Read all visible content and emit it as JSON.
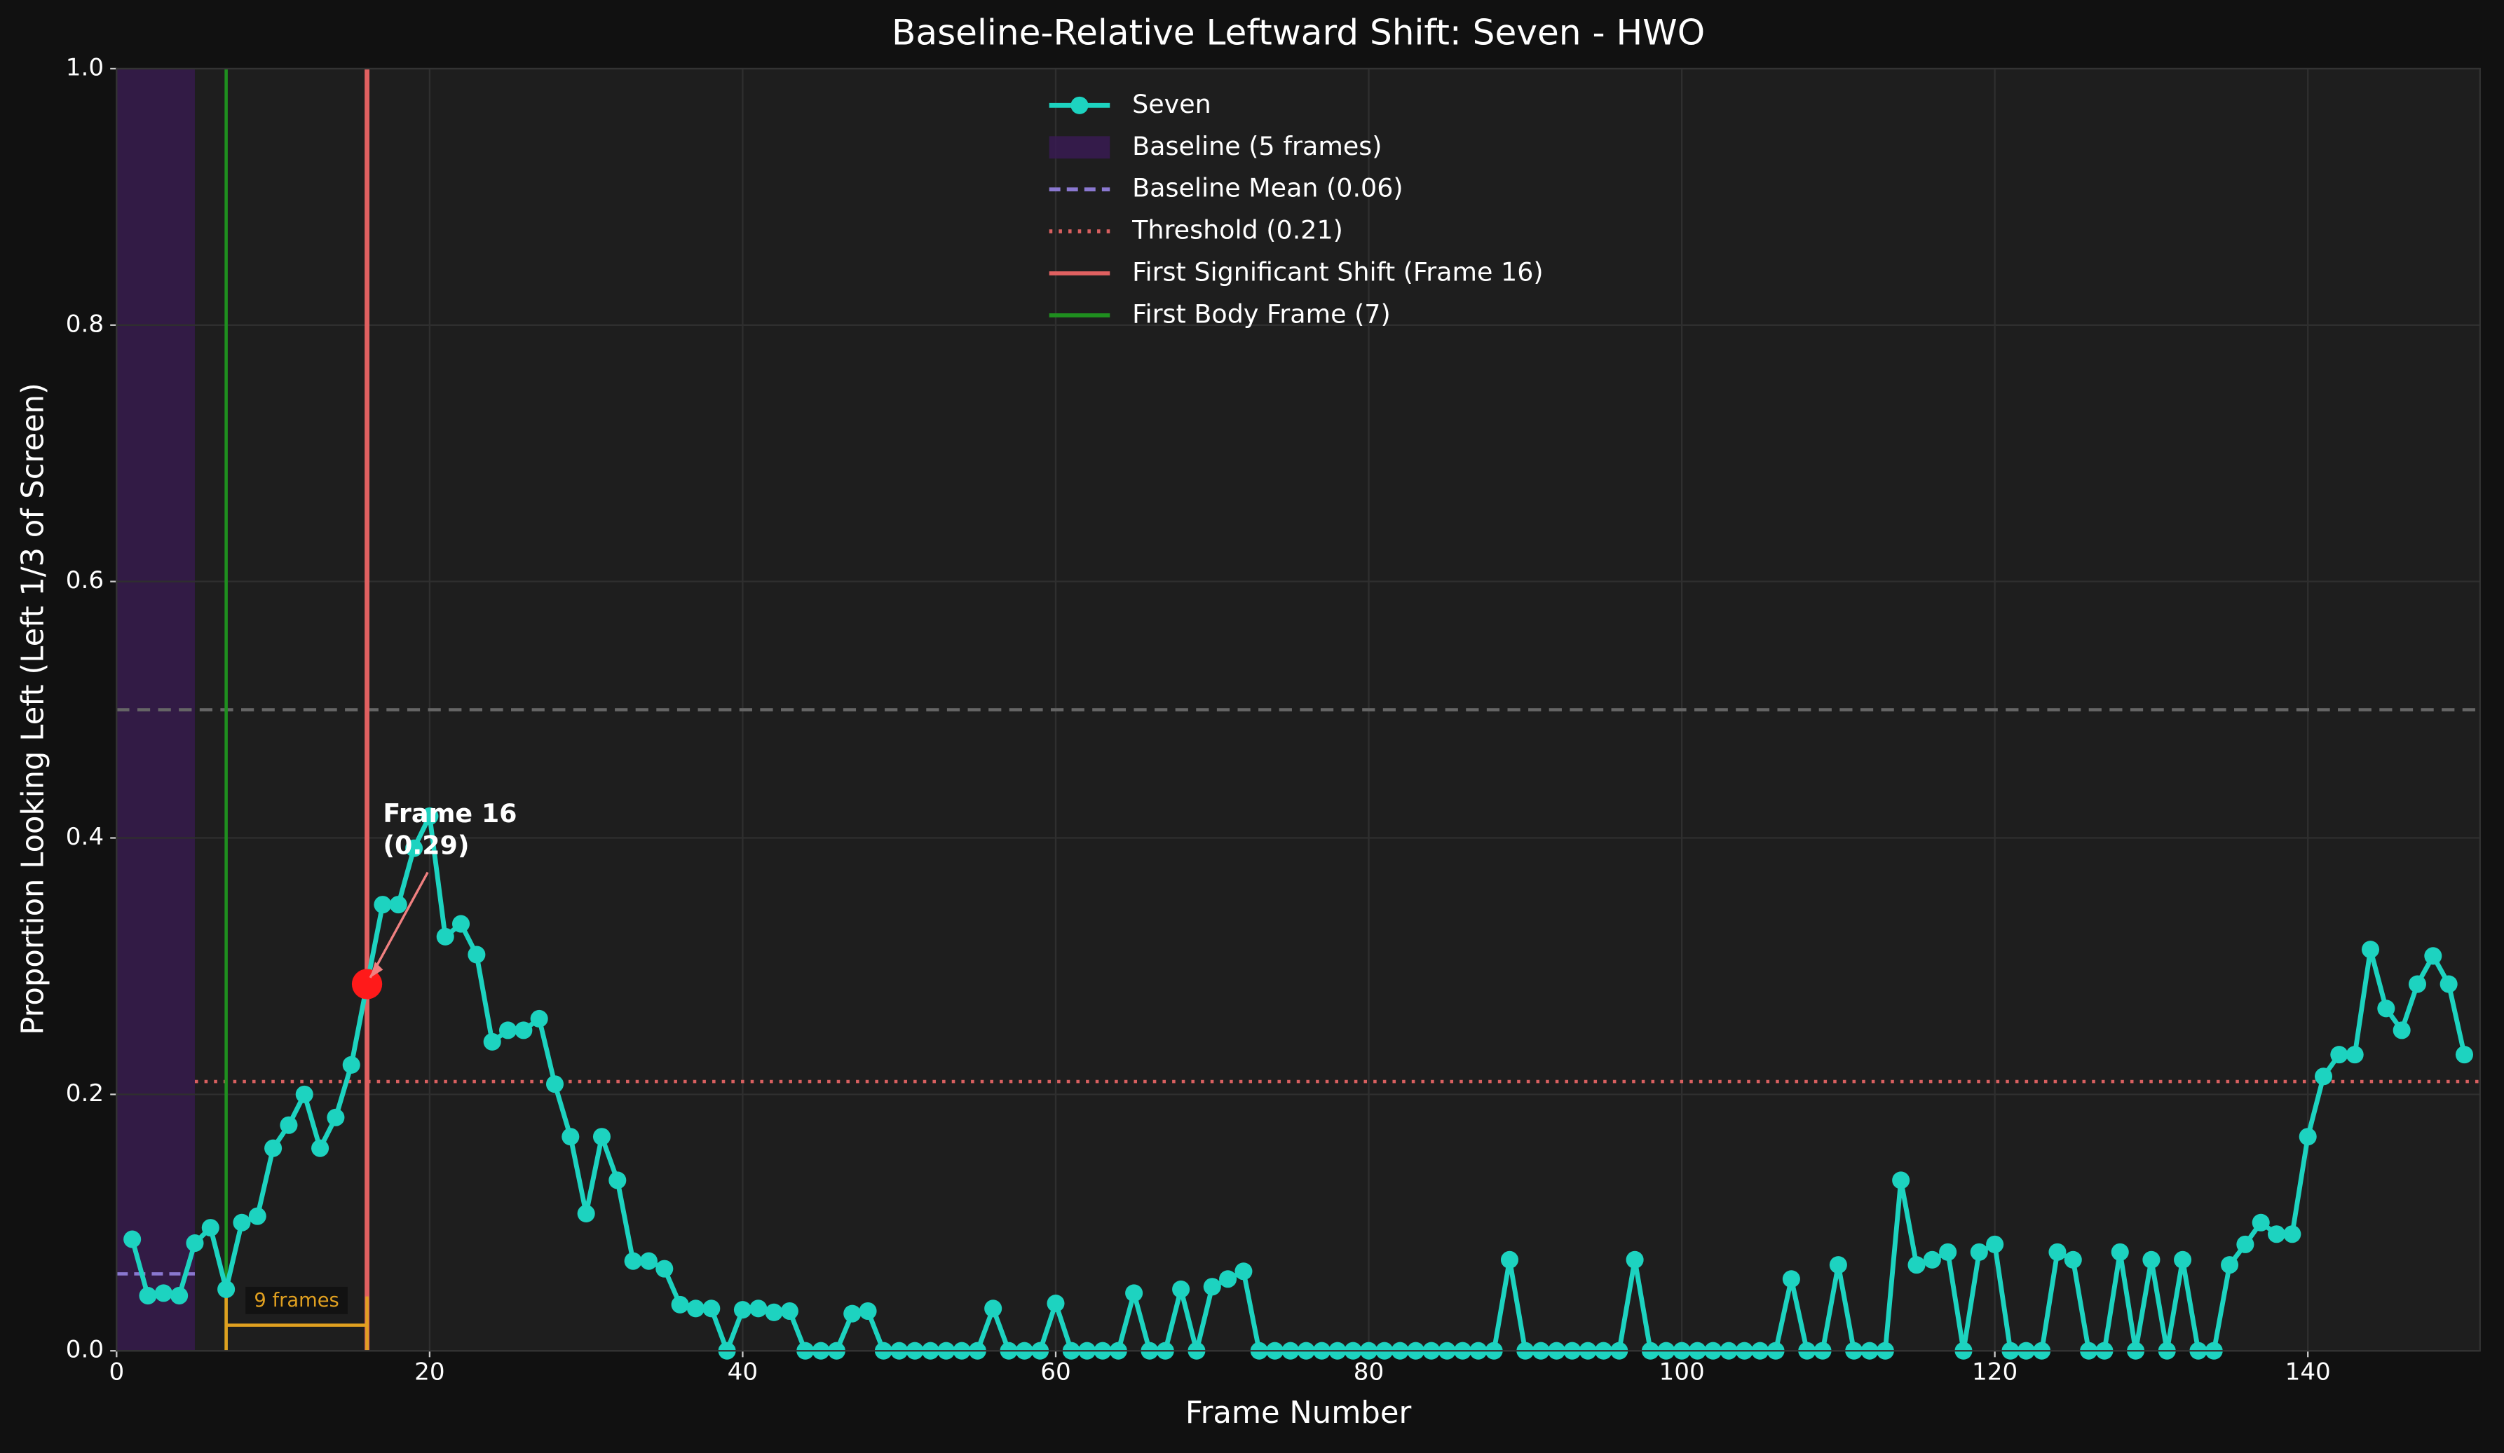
{
  "chart_data": {
    "type": "line",
    "title": "Baseline-Relative Leftward Shift: Seven - HWO",
    "xlabel": "Frame Number",
    "ylabel": "Proportion Looking Left (Left 1/3 of Screen)",
    "x": [
      1,
      2,
      3,
      4,
      5,
      6,
      7,
      8,
      9,
      10,
      11,
      12,
      13,
      14,
      15,
      16,
      17,
      18,
      19,
      20,
      21,
      22,
      23,
      24,
      25,
      26,
      27,
      28,
      29,
      30,
      31,
      32,
      33,
      34,
      35,
      36,
      37,
      38,
      39,
      40,
      41,
      42,
      43,
      44,
      45,
      46,
      47,
      48,
      49,
      50,
      51,
      52,
      53,
      54,
      55,
      56,
      57,
      58,
      59,
      60,
      61,
      62,
      63,
      64,
      65,
      66,
      67,
      68,
      69,
      70,
      71,
      72,
      73,
      74,
      75,
      76,
      77,
      78,
      79,
      80,
      81,
      82,
      83,
      84,
      85,
      86,
      87,
      88,
      89,
      90,
      91,
      92,
      93,
      94,
      95,
      96,
      97,
      98,
      99,
      100,
      101,
      102,
      103,
      104,
      105,
      106,
      107,
      108,
      109,
      110,
      111,
      112,
      113,
      114,
      115,
      116,
      117,
      118,
      119,
      120,
      121,
      122,
      123,
      124,
      125,
      126,
      127,
      128,
      129,
      130,
      131,
      132,
      133,
      134,
      135,
      136,
      137,
      138,
      139,
      140,
      141,
      142,
      143,
      144,
      145,
      146,
      147,
      148,
      149,
      150
    ],
    "series": [
      {
        "name": "Seven",
        "color": "#1dd3c0",
        "values": [
          0.087,
          0.043,
          0.045,
          0.043,
          0.084,
          0.096,
          0.048,
          0.1,
          0.105,
          0.158,
          0.176,
          0.2,
          0.158,
          0.182,
          0.223,
          0.286,
          0.348,
          0.348,
          0.392,
          0.417,
          0.323,
          0.333,
          0.309,
          0.241,
          0.25,
          0.25,
          0.259,
          0.208,
          0.167,
          0.107,
          0.167,
          0.133,
          0.07,
          0.07,
          0.064,
          0.036,
          0.033,
          0.033,
          0,
          0.032,
          0.033,
          0.03,
          0.031,
          0,
          0,
          0,
          0.029,
          0.031,
          0,
          0,
          0,
          0,
          0,
          0,
          0,
          0.033,
          0,
          0,
          0,
          0.037,
          0,
          0,
          0,
          0,
          0.045,
          0,
          0,
          0.048,
          0,
          0.05,
          0.056,
          0.062,
          0,
          0,
          0,
          0,
          0,
          0,
          0,
          0,
          0,
          0,
          0,
          0,
          0,
          0,
          0,
          0,
          0.071,
          0,
          0,
          0,
          0,
          0,
          0,
          0,
          0.071,
          0,
          0,
          0,
          0,
          0,
          0,
          0,
          0,
          0,
          0.056,
          0,
          0,
          0.067,
          0,
          0,
          0,
          0.133,
          0.067,
          0.071,
          0.077,
          0,
          0.077,
          0.083,
          0,
          0,
          0,
          0.077,
          0.071,
          0,
          0,
          0.077,
          0,
          0.071,
          0,
          0.071,
          0,
          0,
          0.067,
          0.083,
          0.1,
          0.091,
          0.091,
          0.167,
          0.214,
          0.231,
          0.231,
          0.313,
          0.267,
          0.25,
          0.286,
          0.308,
          0.286,
          0.231
        ]
      }
    ],
    "xlim": [
      0,
      151
    ],
    "ylim": [
      0,
      1
    ],
    "xticks": [
      0,
      20,
      40,
      60,
      80,
      100,
      120,
      140
    ],
    "yticks": [
      {
        "value": 0,
        "label": "0.0"
      },
      0.2,
      0.4,
      0.6,
      0.8,
      {
        "value": 1,
        "label": "1.0"
      }
    ],
    "grid": true,
    "baseline": {
      "label": "Baseline (5 frames)",
      "range": [
        0,
        5
      ],
      "color": "#3a1a55"
    },
    "baseline_mean": {
      "label": "Baseline Mean (0.06)",
      "value": 0.06,
      "color": "#8a78d0"
    },
    "threshold": {
      "label": "Threshold (0.21)",
      "value": 0.21,
      "color": "#d96060"
    },
    "first_shift": {
      "label": "First Significant Shift (Frame 16)",
      "frame": 16,
      "color": "#e06060"
    },
    "first_body": {
      "label": "First Body Frame (7)",
      "frame": 7,
      "color": "#1f8f1f"
    },
    "reference_line": 0.5,
    "annotation": [
      "Frame 16",
      "(0.29)"
    ],
    "bracket": {
      "label": "9 frames",
      "range": [
        7,
        16
      ],
      "y": 0.02,
      "color": "#e0a020"
    },
    "legend_position": "upper center"
  }
}
